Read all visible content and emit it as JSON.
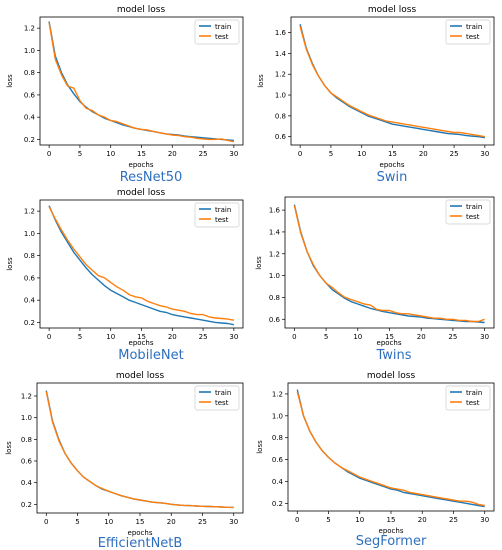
{
  "chart_data": [
    {
      "type": "line",
      "title": "model loss",
      "caption": "ResNet50",
      "xlabel": "epochs",
      "ylabel": "loss",
      "xlim": [
        0,
        30
      ],
      "ylim": [
        0.15,
        1.3
      ],
      "xticks": [
        "0",
        "5",
        "10",
        "15",
        "20",
        "25",
        "30"
      ],
      "yticks": [
        "0.2",
        "0.4",
        "0.6",
        "0.8",
        "1.0",
        "1.2"
      ],
      "legend_position": "top-right",
      "x": [
        0,
        1,
        2,
        3,
        4,
        5,
        6,
        7,
        8,
        9,
        10,
        11,
        12,
        13,
        14,
        15,
        16,
        17,
        18,
        19,
        20,
        21,
        22,
        23,
        24,
        25,
        26,
        27,
        28,
        29,
        30
      ],
      "series": [
        {
          "name": "train",
          "color": "#1f77b4",
          "values": [
            1.26,
            0.95,
            0.8,
            0.69,
            0.61,
            0.54,
            0.49,
            0.45,
            0.42,
            0.39,
            0.37,
            0.35,
            0.33,
            0.315,
            0.3,
            0.29,
            0.28,
            0.27,
            0.26,
            0.25,
            0.245,
            0.24,
            0.23,
            0.225,
            0.22,
            0.215,
            0.21,
            0.205,
            0.2,
            0.195,
            0.19
          ]
        },
        {
          "name": "test",
          "color": "#ff7f0e",
          "values": [
            1.25,
            0.92,
            0.78,
            0.68,
            0.66,
            0.55,
            0.48,
            0.46,
            0.42,
            0.4,
            0.37,
            0.36,
            0.34,
            0.32,
            0.3,
            0.29,
            0.285,
            0.27,
            0.26,
            0.25,
            0.24,
            0.235,
            0.225,
            0.22,
            0.21,
            0.205,
            0.2,
            0.2,
            0.205,
            0.19,
            0.18
          ]
        }
      ]
    },
    {
      "type": "line",
      "title": "model loss",
      "caption": "Swin",
      "xlabel": "epochs",
      "ylabel": "loss",
      "xlim": [
        0,
        30
      ],
      "ylim": [
        0.52,
        1.75
      ],
      "xticks": [
        "0",
        "5",
        "10",
        "15",
        "20",
        "25",
        "30"
      ],
      "yticks": [
        "0.6",
        "0.8",
        "1.0",
        "1.2",
        "1.4",
        "1.6"
      ],
      "legend_position": "top-right",
      "x": [
        0,
        1,
        2,
        3,
        4,
        5,
        6,
        7,
        8,
        9,
        10,
        11,
        12,
        13,
        14,
        15,
        16,
        17,
        18,
        19,
        20,
        21,
        22,
        23,
        24,
        25,
        26,
        27,
        28,
        29,
        30
      ],
      "series": [
        {
          "name": "train",
          "color": "#1f77b4",
          "values": [
            1.68,
            1.45,
            1.3,
            1.18,
            1.09,
            1.02,
            0.97,
            0.93,
            0.89,
            0.86,
            0.83,
            0.8,
            0.78,
            0.76,
            0.74,
            0.72,
            0.71,
            0.7,
            0.69,
            0.68,
            0.67,
            0.66,
            0.65,
            0.64,
            0.63,
            0.625,
            0.62,
            0.61,
            0.605,
            0.6,
            0.59
          ]
        },
        {
          "name": "test",
          "color": "#ff7f0e",
          "values": [
            1.66,
            1.44,
            1.29,
            1.18,
            1.09,
            1.02,
            0.98,
            0.94,
            0.9,
            0.87,
            0.84,
            0.81,
            0.79,
            0.77,
            0.75,
            0.74,
            0.73,
            0.72,
            0.71,
            0.7,
            0.69,
            0.68,
            0.67,
            0.66,
            0.65,
            0.64,
            0.64,
            0.63,
            0.62,
            0.61,
            0.6
          ]
        }
      ]
    },
    {
      "type": "line",
      "title": "model loss",
      "caption": "MobileNet",
      "xlabel": "epochs",
      "ylabel": "loss",
      "xlim": [
        0,
        30
      ],
      "ylim": [
        0.15,
        1.3
      ],
      "xticks": [
        "0",
        "5",
        "10",
        "15",
        "20",
        "25",
        "30"
      ],
      "yticks": [
        "0.2",
        "0.4",
        "0.6",
        "0.8",
        "1.0",
        "1.2"
      ],
      "legend_position": "top-right",
      "x": [
        0,
        1,
        2,
        3,
        4,
        5,
        6,
        7,
        8,
        9,
        10,
        11,
        12,
        13,
        14,
        15,
        16,
        17,
        18,
        19,
        20,
        21,
        22,
        23,
        24,
        25,
        26,
        27,
        28,
        29,
        30
      ],
      "series": [
        {
          "name": "train",
          "color": "#1f77b4",
          "values": [
            1.25,
            1.12,
            1.01,
            0.92,
            0.83,
            0.76,
            0.69,
            0.63,
            0.58,
            0.53,
            0.49,
            0.46,
            0.43,
            0.4,
            0.38,
            0.36,
            0.34,
            0.32,
            0.3,
            0.29,
            0.27,
            0.26,
            0.25,
            0.24,
            0.23,
            0.22,
            0.21,
            0.2,
            0.195,
            0.19,
            0.18
          ]
        },
        {
          "name": "test",
          "color": "#ff7f0e",
          "values": [
            1.24,
            1.13,
            1.03,
            0.94,
            0.86,
            0.79,
            0.72,
            0.67,
            0.62,
            0.6,
            0.56,
            0.52,
            0.49,
            0.45,
            0.43,
            0.42,
            0.39,
            0.37,
            0.35,
            0.34,
            0.32,
            0.31,
            0.3,
            0.28,
            0.27,
            0.27,
            0.25,
            0.24,
            0.235,
            0.23,
            0.22
          ]
        }
      ]
    },
    {
      "type": "line",
      "title": "",
      "caption": "Twins",
      "xlabel": "epochs",
      "ylabel": "loss",
      "xlim": [
        0,
        30
      ],
      "ylim": [
        0.52,
        1.72
      ],
      "xticks": [
        "0",
        "5",
        "10",
        "15",
        "20",
        "25",
        "30"
      ],
      "yticks": [
        "0.6",
        "0.8",
        "1.0",
        "1.2",
        "1.4",
        "1.6"
      ],
      "legend_position": "top-right",
      "x": [
        0,
        1,
        2,
        3,
        4,
        5,
        6,
        7,
        8,
        9,
        10,
        11,
        12,
        13,
        14,
        15,
        16,
        17,
        18,
        19,
        20,
        21,
        22,
        23,
        24,
        25,
        26,
        27,
        28,
        29,
        30
      ],
      "series": [
        {
          "name": "train",
          "color": "#1f77b4",
          "values": [
            1.65,
            1.4,
            1.22,
            1.09,
            1.0,
            0.93,
            0.87,
            0.83,
            0.79,
            0.76,
            0.74,
            0.72,
            0.7,
            0.685,
            0.67,
            0.66,
            0.65,
            0.64,
            0.63,
            0.625,
            0.62,
            0.61,
            0.605,
            0.6,
            0.595,
            0.59,
            0.585,
            0.58,
            0.58,
            0.575,
            0.57
          ]
        },
        {
          "name": "test",
          "color": "#ff7f0e",
          "values": [
            1.64,
            1.39,
            1.22,
            1.1,
            1.0,
            0.93,
            0.89,
            0.84,
            0.8,
            0.78,
            0.76,
            0.74,
            0.73,
            0.69,
            0.68,
            0.68,
            0.66,
            0.65,
            0.65,
            0.64,
            0.63,
            0.62,
            0.61,
            0.61,
            0.6,
            0.6,
            0.59,
            0.59,
            0.58,
            0.58,
            0.6
          ]
        }
      ]
    },
    {
      "type": "line",
      "title": "model loss",
      "caption": "EfficientNetB",
      "xlabel": "epochs",
      "ylabel": "loss",
      "xlim": [
        0,
        30
      ],
      "ylim": [
        0.12,
        1.32
      ],
      "xticks": [
        "0",
        "5",
        "10",
        "15",
        "20",
        "25",
        "30"
      ],
      "yticks": [
        "0.2",
        "0.4",
        "0.6",
        "0.8",
        "1.0",
        "1.2"
      ],
      "legend_position": "top-right",
      "x": [
        0,
        1,
        2,
        3,
        4,
        5,
        6,
        7,
        8,
        9,
        10,
        11,
        12,
        13,
        14,
        15,
        16,
        17,
        18,
        19,
        20,
        21,
        22,
        23,
        24,
        25,
        26,
        27,
        28,
        29,
        30
      ],
      "series": [
        {
          "name": "train",
          "color": "#1f77b4",
          "values": [
            1.25,
            0.97,
            0.8,
            0.67,
            0.58,
            0.51,
            0.45,
            0.41,
            0.37,
            0.34,
            0.32,
            0.3,
            0.28,
            0.265,
            0.25,
            0.24,
            0.23,
            0.22,
            0.215,
            0.21,
            0.2,
            0.195,
            0.19,
            0.188,
            0.185,
            0.182,
            0.18,
            0.178,
            0.175,
            0.173,
            0.172
          ]
        },
        {
          "name": "test",
          "color": "#ff7f0e",
          "values": [
            1.24,
            0.96,
            0.79,
            0.67,
            0.58,
            0.51,
            0.45,
            0.41,
            0.37,
            0.345,
            0.32,
            0.3,
            0.28,
            0.265,
            0.25,
            0.24,
            0.23,
            0.22,
            0.215,
            0.21,
            0.2,
            0.195,
            0.19,
            0.188,
            0.185,
            0.182,
            0.18,
            0.178,
            0.175,
            0.173,
            0.172
          ]
        }
      ]
    },
    {
      "type": "line",
      "title": "model loss",
      "caption": "SegFormer",
      "xlabel": "epochs",
      "ylabel": "loss",
      "xlim": [
        0,
        30
      ],
      "ylim": [
        0.13,
        1.3
      ],
      "xticks": [
        "0",
        "5",
        "10",
        "15",
        "20",
        "25",
        "30"
      ],
      "yticks": [
        "0.2",
        "0.4",
        "0.6",
        "0.8",
        "1.0",
        "1.2"
      ],
      "legend_position": "top-right",
      "x": [
        0,
        1,
        2,
        3,
        4,
        5,
        6,
        7,
        8,
        9,
        10,
        11,
        12,
        13,
        14,
        15,
        16,
        17,
        18,
        19,
        20,
        21,
        22,
        23,
        24,
        25,
        26,
        27,
        28,
        29,
        30
      ],
      "series": [
        {
          "name": "train",
          "color": "#1f77b4",
          "values": [
            1.24,
            1.0,
            0.86,
            0.76,
            0.68,
            0.62,
            0.57,
            0.53,
            0.49,
            0.46,
            0.43,
            0.41,
            0.39,
            0.37,
            0.35,
            0.33,
            0.32,
            0.3,
            0.29,
            0.28,
            0.27,
            0.26,
            0.25,
            0.24,
            0.23,
            0.22,
            0.21,
            0.2,
            0.19,
            0.18,
            0.17
          ]
        },
        {
          "name": "test",
          "color": "#ff7f0e",
          "values": [
            1.22,
            1.0,
            0.86,
            0.76,
            0.68,
            0.62,
            0.57,
            0.53,
            0.5,
            0.47,
            0.44,
            0.42,
            0.4,
            0.38,
            0.36,
            0.34,
            0.33,
            0.32,
            0.3,
            0.29,
            0.28,
            0.27,
            0.26,
            0.25,
            0.24,
            0.23,
            0.22,
            0.22,
            0.21,
            0.19,
            0.18
          ]
        }
      ]
    }
  ]
}
